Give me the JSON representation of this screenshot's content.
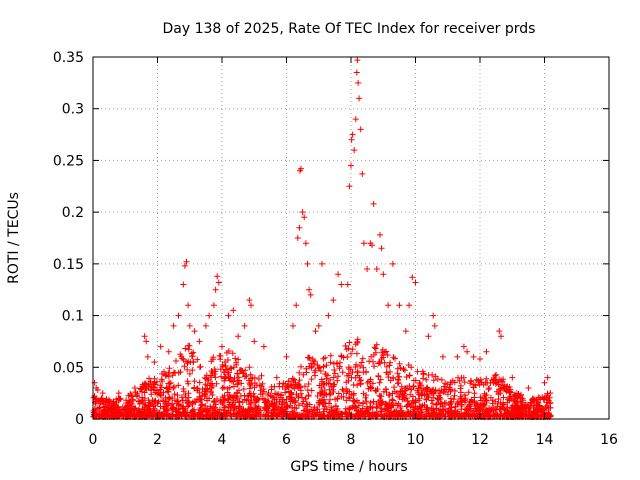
{
  "chart_data": {
    "type": "scatter",
    "title": "Day 138 of 2025, Rate Of TEC Index for receiver prds",
    "xlabel": "GPS time / hours",
    "ylabel": "ROTI / TECUs",
    "xlim": [
      0,
      16
    ],
    "ylim": [
      0,
      0.35
    ],
    "xticks": [
      "0",
      "2",
      "4",
      "6",
      "8",
      "10",
      "12",
      "14",
      "16"
    ],
    "yticks": [
      "0",
      "0.05",
      "0.1",
      "0.15",
      "0.2",
      "0.25",
      "0.3",
      "0.35"
    ],
    "grid": true,
    "marker": "+",
    "color": "#ff0000",
    "data_coverage": [
      0,
      14.2
    ],
    "envelope": [
      [
        0.0,
        0.022
      ],
      [
        0.3,
        0.018
      ],
      [
        0.6,
        0.017
      ],
      [
        1.0,
        0.02
      ],
      [
        1.4,
        0.027
      ],
      [
        1.8,
        0.04
      ],
      [
        2.2,
        0.045
      ],
      [
        2.6,
        0.06
      ],
      [
        3.0,
        0.075
      ],
      [
        3.4,
        0.05
      ],
      [
        3.8,
        0.06
      ],
      [
        4.2,
        0.065
      ],
      [
        4.6,
        0.055
      ],
      [
        5.0,
        0.05
      ],
      [
        5.4,
        0.035
      ],
      [
        5.8,
        0.032
      ],
      [
        6.2,
        0.04
      ],
      [
        6.6,
        0.06
      ],
      [
        7.0,
        0.055
      ],
      [
        7.4,
        0.06
      ],
      [
        7.8,
        0.07
      ],
      [
        8.2,
        0.08
      ],
      [
        8.6,
        0.075
      ],
      [
        9.0,
        0.065
      ],
      [
        9.4,
        0.06
      ],
      [
        9.8,
        0.05
      ],
      [
        10.2,
        0.045
      ],
      [
        10.6,
        0.04
      ],
      [
        11.0,
        0.035
      ],
      [
        11.4,
        0.04
      ],
      [
        11.8,
        0.035
      ],
      [
        12.2,
        0.04
      ],
      [
        12.6,
        0.045
      ],
      [
        13.0,
        0.025
      ],
      [
        13.4,
        0.02
      ],
      [
        13.8,
        0.02
      ],
      [
        14.2,
        0.025
      ]
    ],
    "points": [
      [
        0.05,
        0.035
      ],
      [
        0.1,
        0.03
      ],
      [
        0.15,
        0.028
      ],
      [
        0.3,
        0.025
      ],
      [
        0.8,
        0.025
      ],
      [
        1.3,
        0.03
      ],
      [
        1.6,
        0.08
      ],
      [
        1.65,
        0.075
      ],
      [
        1.7,
        0.06
      ],
      [
        1.9,
        0.055
      ],
      [
        2.1,
        0.07
      ],
      [
        2.35,
        0.065
      ],
      [
        2.5,
        0.09
      ],
      [
        2.65,
        0.1
      ],
      [
        2.8,
        0.13
      ],
      [
        2.85,
        0.148
      ],
      [
        2.9,
        0.152
      ],
      [
        2.95,
        0.11
      ],
      [
        3.0,
        0.09
      ],
      [
        3.15,
        0.085
      ],
      [
        3.3,
        0.075
      ],
      [
        3.5,
        0.09
      ],
      [
        3.6,
        0.1
      ],
      [
        3.75,
        0.11
      ],
      [
        3.8,
        0.125
      ],
      [
        3.85,
        0.138
      ],
      [
        3.9,
        0.132
      ],
      [
        4.0,
        0.07
      ],
      [
        4.2,
        0.1
      ],
      [
        4.35,
        0.105
      ],
      [
        4.5,
        0.08
      ],
      [
        4.7,
        0.09
      ],
      [
        4.85,
        0.115
      ],
      [
        4.9,
        0.11
      ],
      [
        5.0,
        0.075
      ],
      [
        5.3,
        0.07
      ],
      [
        5.7,
        0.04
      ],
      [
        6.0,
        0.06
      ],
      [
        6.2,
        0.09
      ],
      [
        6.3,
        0.11
      ],
      [
        6.35,
        0.175
      ],
      [
        6.4,
        0.185
      ],
      [
        6.42,
        0.24
      ],
      [
        6.45,
        0.242
      ],
      [
        6.5,
        0.2
      ],
      [
        6.55,
        0.195
      ],
      [
        6.6,
        0.17
      ],
      [
        6.65,
        0.15
      ],
      [
        6.7,
        0.125
      ],
      [
        6.75,
        0.12
      ],
      [
        6.9,
        0.085
      ],
      [
        7.0,
        0.09
      ],
      [
        7.1,
        0.15
      ],
      [
        7.3,
        0.1
      ],
      [
        7.45,
        0.115
      ],
      [
        7.6,
        0.14
      ],
      [
        7.7,
        0.13
      ],
      [
        7.9,
        0.13
      ],
      [
        7.95,
        0.225
      ],
      [
        8.0,
        0.245
      ],
      [
        8.02,
        0.27
      ],
      [
        8.05,
        0.275
      ],
      [
        8.1,
        0.26
      ],
      [
        8.15,
        0.29
      ],
      [
        8.18,
        0.335
      ],
      [
        8.2,
        0.347
      ],
      [
        8.22,
        0.325
      ],
      [
        8.25,
        0.31
      ],
      [
        8.3,
        0.28
      ],
      [
        8.35,
        0.237
      ],
      [
        8.4,
        0.17
      ],
      [
        8.5,
        0.145
      ],
      [
        8.6,
        0.17
      ],
      [
        8.65,
        0.168
      ],
      [
        8.7,
        0.208
      ],
      [
        8.8,
        0.145
      ],
      [
        8.9,
        0.178
      ],
      [
        8.95,
        0.165
      ],
      [
        9.0,
        0.14
      ],
      [
        9.15,
        0.11
      ],
      [
        9.3,
        0.15
      ],
      [
        9.5,
        0.11
      ],
      [
        9.7,
        0.085
      ],
      [
        9.8,
        0.11
      ],
      [
        9.9,
        0.137
      ],
      [
        10.0,
        0.132
      ],
      [
        10.4,
        0.08
      ],
      [
        10.55,
        0.1
      ],
      [
        10.6,
        0.09
      ],
      [
        10.85,
        0.06
      ],
      [
        11.3,
        0.06
      ],
      [
        11.5,
        0.07
      ],
      [
        11.6,
        0.065
      ],
      [
        11.8,
        0.06
      ],
      [
        12.0,
        0.058
      ],
      [
        12.2,
        0.065
      ],
      [
        12.6,
        0.085
      ],
      [
        12.65,
        0.08
      ],
      [
        13.0,
        0.04
      ],
      [
        13.5,
        0.03
      ],
      [
        14.0,
        0.035
      ],
      [
        14.1,
        0.04
      ]
    ]
  }
}
